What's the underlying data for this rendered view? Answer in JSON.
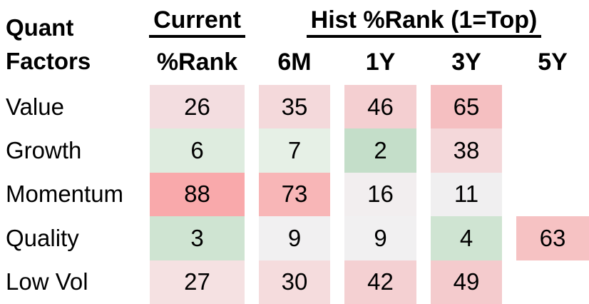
{
  "chart_data": {
    "type": "heatmap",
    "title": "Quant Factors",
    "subtitle_note": "Hist %Rank (1=Top)",
    "row_labels": [
      "Value",
      "Growth",
      "Momentum",
      "Quality",
      "Low Vol"
    ],
    "column_groups": [
      {
        "label": "Current",
        "columns": [
          "%Rank"
        ]
      },
      {
        "label": "Hist %Rank (1=Top)",
        "columns": [
          "6M",
          "1Y",
          "3Y",
          "5Y"
        ]
      }
    ],
    "columns": [
      "%Rank",
      "6M",
      "1Y",
      "3Y",
      "5Y"
    ],
    "values": [
      [
        26,
        35,
        46,
        65,
        null
      ],
      [
        6,
        7,
        2,
        38,
        null
      ],
      [
        88,
        73,
        16,
        11,
        null
      ],
      [
        3,
        9,
        9,
        4,
        63
      ],
      [
        27,
        30,
        42,
        49,
        null
      ]
    ],
    "colormap": "3-color scale: green (low/top rank) -> white (mid) -> red (high/bottom rank)",
    "legend_position": "none",
    "grid": false
  },
  "table": {
    "corner": {
      "line1": "Quant",
      "line2": "Factors"
    },
    "group_headers": {
      "current": "Current",
      "hist": "Hist %Rank (1=Top)"
    },
    "column_headers": {
      "rank": "%Rank",
      "m6": "6M",
      "y1": "1Y",
      "y3": "3Y",
      "y5": "5Y"
    },
    "rows": [
      {
        "label": "Value",
        "cells": [
          {
            "value": "26",
            "bg": "#f3dde0"
          },
          {
            "value": "35",
            "bg": "#f4d9db"
          },
          {
            "value": "46",
            "bg": "#f4cfd1"
          },
          {
            "value": "65",
            "bg": "#f5bfc1"
          },
          {
            "value": "",
            "bg": ""
          }
        ]
      },
      {
        "label": "Growth",
        "cells": [
          {
            "value": "6",
            "bg": "#deecdf"
          },
          {
            "value": "7",
            "bg": "#e6f0e6"
          },
          {
            "value": "2",
            "bg": "#c4dec9"
          },
          {
            "value": "38",
            "bg": "#f4d8da"
          },
          {
            "value": "",
            "bg": ""
          }
        ]
      },
      {
        "label": "Momentum",
        "cells": [
          {
            "value": "88",
            "bg": "#f9a9ab"
          },
          {
            "value": "73",
            "bg": "#f8b6b7"
          },
          {
            "value": "16",
            "bg": "#f2eeef"
          },
          {
            "value": "11",
            "bg": "#f0eff0"
          },
          {
            "value": "",
            "bg": ""
          }
        ]
      },
      {
        "label": "Quality",
        "cells": [
          {
            "value": "3",
            "bg": "#cfe4d2"
          },
          {
            "value": "9",
            "bg": "#f1f0f1"
          },
          {
            "value": "9",
            "bg": "#f1f0f1"
          },
          {
            "value": "4",
            "bg": "#cfe4d2"
          },
          {
            "value": "63",
            "bg": "#f6c2c3"
          }
        ]
      },
      {
        "label": "Low Vol",
        "cells": [
          {
            "value": "27",
            "bg": "#f5e1e2"
          },
          {
            "value": "30",
            "bg": "#f5dcdd"
          },
          {
            "value": "42",
            "bg": "#f4d0d2"
          },
          {
            "value": "49",
            "bg": "#f4cbcd"
          },
          {
            "value": "",
            "bg": ""
          }
        ]
      }
    ],
    "colors": {
      "strong_red": "#f9a9ab",
      "strong_green": "#c4dec9",
      "neutral": "#f1f0f1",
      "text": "#000000",
      "background": "#ffffff"
    }
  }
}
